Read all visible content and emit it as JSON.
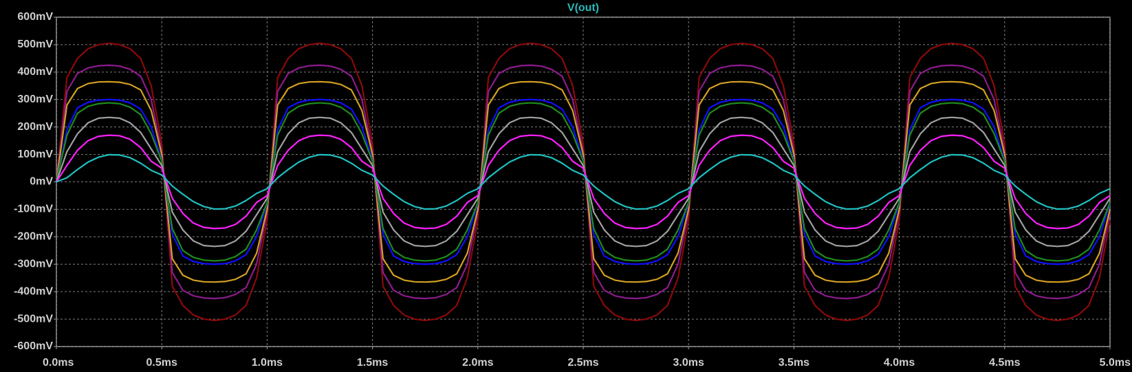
{
  "chart_data": {
    "type": "line",
    "title": "V(out)",
    "title_color": "#2ab8b8",
    "grid": true,
    "x": [
      0,
      0.05,
      0.1,
      0.15,
      0.2,
      0.25,
      0.3,
      0.35,
      0.4,
      0.45,
      0.5,
      0.55,
      0.6,
      0.65,
      0.7,
      0.75,
      0.8,
      0.85,
      0.9,
      0.95,
      1,
      1.05,
      1.1,
      1.15,
      1.2,
      1.25,
      1.3,
      1.35,
      1.4,
      1.45,
      1.5,
      1.55,
      1.6,
      1.65,
      1.7,
      1.75,
      1.8,
      1.85,
      1.9,
      1.95,
      2,
      2.05,
      2.1,
      2.15,
      2.2,
      2.25,
      2.3,
      2.35,
      2.4,
      2.45,
      2.5,
      2.55,
      2.6,
      2.65,
      2.7,
      2.75,
      2.8,
      2.85,
      2.9,
      2.95,
      3,
      3.05,
      3.1,
      3.15,
      3.2,
      3.25,
      3.3,
      3.35,
      3.4,
      3.45,
      3.5,
      3.55,
      3.6,
      3.65,
      3.7,
      3.75,
      3.8,
      3.85,
      3.9,
      3.95,
      4,
      4.05,
      4.1,
      4.15,
      4.2,
      4.25,
      4.3,
      4.35,
      4.4,
      4.45,
      4.5,
      4.55,
      4.6,
      4.65,
      4.7,
      4.75,
      4.8,
      4.85,
      4.9,
      4.95,
      5
    ],
    "xlim": [
      0,
      5
    ],
    "xticks": [
      {
        "value": 0,
        "label": "0.0ms"
      },
      {
        "value": 0.5,
        "label": "0.5ms"
      },
      {
        "value": 1,
        "label": "1.0ms"
      },
      {
        "value": 1.5,
        "label": "1.5ms"
      },
      {
        "value": 2,
        "label": "2.0ms"
      },
      {
        "value": 2.5,
        "label": "2.5ms"
      },
      {
        "value": 3,
        "label": "3.0ms"
      },
      {
        "value": 3.5,
        "label": "3.5ms"
      },
      {
        "value": 4,
        "label": "4.0ms"
      },
      {
        "value": 4.5,
        "label": "4.5ms"
      },
      {
        "value": 5,
        "label": "5.0ms"
      }
    ],
    "ylim": [
      -600,
      600
    ],
    "yticks": [
      {
        "value": 600,
        "label": "600mV"
      },
      {
        "value": 500,
        "label": "500mV"
      },
      {
        "value": 400,
        "label": "400mV"
      },
      {
        "value": 300,
        "label": "300mV"
      },
      {
        "value": 200,
        "label": "200mV"
      },
      {
        "value": 100,
        "label": "100mV"
      },
      {
        "value": 0,
        "label": "0mV"
      },
      {
        "value": -100,
        "label": "-100mV"
      },
      {
        "value": -200,
        "label": "-200mV"
      },
      {
        "value": -300,
        "label": "-300mV"
      },
      {
        "value": -400,
        "label": "-400mV"
      },
      {
        "value": -500,
        "label": "-500mV"
      },
      {
        "value": -600,
        "label": "-600mV"
      }
    ],
    "series": [
      {
        "color": "#8b0a0a",
        "values": [
          0,
          380,
          450,
          485,
          500,
          505,
          500,
          485,
          450,
          350,
          140,
          -380,
          -450,
          -485,
          -500,
          -505,
          -500,
          -485,
          -450,
          -350,
          -140,
          380,
          450,
          485,
          500,
          505,
          500,
          485,
          450,
          350,
          140,
          -380,
          -450,
          -485,
          -500,
          -505,
          -500,
          -485,
          -450,
          -350,
          -140,
          380,
          450,
          485,
          500,
          505,
          500,
          485,
          450,
          350,
          140,
          -380,
          -450,
          -485,
          -500,
          -505,
          -500,
          -485,
          -450,
          -350,
          -140,
          380,
          450,
          485,
          500,
          505,
          500,
          485,
          450,
          350,
          140,
          -380,
          -450,
          -485,
          -500,
          -505,
          -500,
          -485,
          -450,
          -350,
          -140,
          380,
          450,
          485,
          500,
          505,
          500,
          485,
          450,
          350,
          140,
          -380,
          -450,
          -485,
          -500,
          -505,
          -500,
          -485,
          -450,
          -350,
          -140
        ]
      },
      {
        "color": "#8e1b8e",
        "values": [
          0,
          330,
          395,
          415,
          423,
          425,
          422,
          410,
          385,
          300,
          110,
          -330,
          -395,
          -415,
          -423,
          -425,
          -422,
          -410,
          -385,
          -300,
          -110,
          330,
          395,
          415,
          423,
          425,
          422,
          410,
          385,
          300,
          110,
          -330,
          -395,
          -415,
          -423,
          -425,
          -422,
          -410,
          -385,
          -300,
          -110,
          330,
          395,
          415,
          423,
          425,
          422,
          410,
          385,
          300,
          110,
          -330,
          -395,
          -415,
          -423,
          -425,
          -422,
          -410,
          -385,
          -300,
          -110,
          330,
          395,
          415,
          423,
          425,
          422,
          410,
          385,
          300,
          110,
          -330,
          -395,
          -415,
          -423,
          -425,
          -422,
          -410,
          -385,
          -300,
          -110,
          330,
          395,
          415,
          423,
          425,
          422,
          410,
          385,
          300,
          110,
          -330,
          -395,
          -415,
          -423,
          -425,
          -422,
          -410,
          -385,
          -300,
          -110
        ]
      },
      {
        "color": "#d4a020",
        "values": [
          0,
          280,
          340,
          358,
          364,
          365,
          363,
          355,
          335,
          260,
          100,
          -280,
          -340,
          -358,
          -364,
          -365,
          -363,
          -355,
          -335,
          -260,
          -100,
          280,
          340,
          358,
          364,
          365,
          363,
          355,
          335,
          260,
          100,
          -280,
          -340,
          -358,
          -364,
          -365,
          -363,
          -355,
          -335,
          -260,
          -100,
          280,
          340,
          358,
          364,
          365,
          363,
          355,
          335,
          260,
          100,
          -280,
          -340,
          -358,
          -364,
          -365,
          -363,
          -355,
          -335,
          -260,
          -100,
          280,
          340,
          358,
          364,
          365,
          363,
          355,
          335,
          260,
          100,
          -280,
          -340,
          -358,
          -364,
          -365,
          -363,
          -355,
          -335,
          -260,
          -100,
          280,
          340,
          358,
          364,
          365,
          363,
          355,
          335,
          260,
          100,
          -280,
          -340,
          -358,
          -364,
          -365,
          -363,
          -355,
          -335,
          -260,
          -100
        ]
      },
      {
        "color": "#1010ff",
        "values": [
          0,
          190,
          270,
          290,
          298,
          300,
          298,
          288,
          265,
          200,
          80,
          -190,
          -270,
          -290,
          -298,
          -300,
          -298,
          -288,
          -265,
          -200,
          -80,
          190,
          270,
          290,
          298,
          300,
          298,
          288,
          265,
          200,
          80,
          -190,
          -270,
          -290,
          -298,
          -300,
          -298,
          -288,
          -265,
          -200,
          -80,
          190,
          270,
          290,
          298,
          300,
          298,
          288,
          265,
          200,
          80,
          -190,
          -270,
          -290,
          -298,
          -300,
          -298,
          -288,
          -265,
          -200,
          -80,
          190,
          270,
          290,
          298,
          300,
          298,
          288,
          265,
          200,
          80,
          -190,
          -270,
          -290,
          -298,
          -300,
          -298,
          -288,
          -265,
          -200,
          -80,
          190,
          270,
          290,
          298,
          300,
          298,
          288,
          265,
          200,
          80,
          -190,
          -270,
          -290,
          -298,
          -300,
          -298,
          -288,
          -265,
          -200,
          -80
        ]
      },
      {
        "color": "#1e8c1e",
        "values": [
          0,
          170,
          250,
          275,
          285,
          288,
          285,
          272,
          245,
          175,
          75,
          -170,
          -250,
          -275,
          -285,
          -288,
          -285,
          -272,
          -245,
          -175,
          -75,
          170,
          250,
          275,
          285,
          288,
          285,
          272,
          245,
          175,
          75,
          -170,
          -250,
          -275,
          -285,
          -288,
          -285,
          -272,
          -245,
          -175,
          -75,
          170,
          250,
          275,
          285,
          288,
          285,
          272,
          245,
          175,
          75,
          -170,
          -250,
          -275,
          -285,
          -288,
          -285,
          -272,
          -245,
          -175,
          -75,
          170,
          250,
          275,
          285,
          288,
          285,
          272,
          245,
          175,
          75,
          -170,
          -250,
          -275,
          -285,
          -288,
          -285,
          -272,
          -245,
          -175,
          -75,
          170,
          250,
          275,
          285,
          288,
          285,
          272,
          245,
          175,
          75,
          -170,
          -250,
          -275,
          -285,
          -288,
          -285,
          -272,
          -245,
          -175,
          -75
        ]
      },
      {
        "color": "#a0a0a0",
        "values": [
          0,
          110,
          175,
          215,
          232,
          235,
          232,
          215,
          180,
          120,
          60,
          -110,
          -175,
          -215,
          -232,
          -235,
          -232,
          -215,
          -180,
          -120,
          -60,
          110,
          175,
          215,
          232,
          235,
          232,
          215,
          180,
          120,
          60,
          -110,
          -175,
          -215,
          -232,
          -235,
          -232,
          -215,
          -180,
          -120,
          -60,
          110,
          175,
          215,
          232,
          235,
          232,
          215,
          180,
          120,
          60,
          -110,
          -175,
          -215,
          -232,
          -235,
          -232,
          -215,
          -180,
          -120,
          -60,
          110,
          175,
          215,
          232,
          235,
          232,
          215,
          180,
          120,
          60,
          -110,
          -175,
          -215,
          -232,
          -235,
          -232,
          -215,
          -180,
          -120,
          -60,
          110,
          175,
          215,
          232,
          235,
          232,
          215,
          180,
          120,
          60,
          -110,
          -175,
          -215,
          -232,
          -235,
          -232,
          -215,
          -180,
          -120,
          -60
        ]
      },
      {
        "color": "#ff20ff",
        "values": [
          0,
          60,
          115,
          150,
          166,
          170,
          168,
          155,
          125,
          75,
          50,
          -60,
          -115,
          -150,
          -166,
          -170,
          -168,
          -155,
          -125,
          -75,
          -50,
          60,
          115,
          150,
          166,
          170,
          168,
          155,
          125,
          75,
          50,
          -60,
          -115,
          -150,
          -166,
          -170,
          -168,
          -155,
          -125,
          -75,
          -50,
          60,
          115,
          150,
          166,
          170,
          168,
          155,
          125,
          75,
          50,
          -60,
          -115,
          -150,
          -166,
          -170,
          -168,
          -155,
          -125,
          -75,
          -50,
          60,
          115,
          150,
          166,
          170,
          168,
          155,
          125,
          75,
          50,
          -60,
          -115,
          -150,
          -166,
          -170,
          -168,
          -155,
          -125,
          -75,
          -50,
          60,
          115,
          150,
          166,
          170,
          168,
          155,
          125,
          75,
          50,
          -60,
          -115,
          -150,
          -166,
          -170,
          -168,
          -155,
          -125,
          -75,
          -50
        ]
      },
      {
        "color": "#20c0c0",
        "values": [
          0,
          15,
          45,
          72,
          90,
          99,
          98,
          88,
          68,
          42,
          25,
          -15,
          -45,
          -72,
          -90,
          -99,
          -98,
          -88,
          -68,
          -42,
          -25,
          15,
          45,
          72,
          90,
          99,
          98,
          88,
          68,
          42,
          25,
          -15,
          -45,
          -72,
          -90,
          -99,
          -98,
          -88,
          -68,
          -42,
          -25,
          15,
          45,
          72,
          90,
          99,
          98,
          88,
          68,
          42,
          25,
          -15,
          -45,
          -72,
          -90,
          -99,
          -98,
          -88,
          -68,
          -42,
          -25,
          15,
          45,
          72,
          90,
          99,
          98,
          88,
          68,
          42,
          25,
          -15,
          -45,
          -72,
          -90,
          -99,
          -98,
          -88,
          -68,
          -42,
          -25,
          15,
          45,
          72,
          90,
          99,
          98,
          88,
          68,
          42,
          25,
          -15,
          -45,
          -72,
          -90,
          -99,
          -98,
          -88,
          -68,
          -42,
          -25
        ]
      }
    ]
  }
}
